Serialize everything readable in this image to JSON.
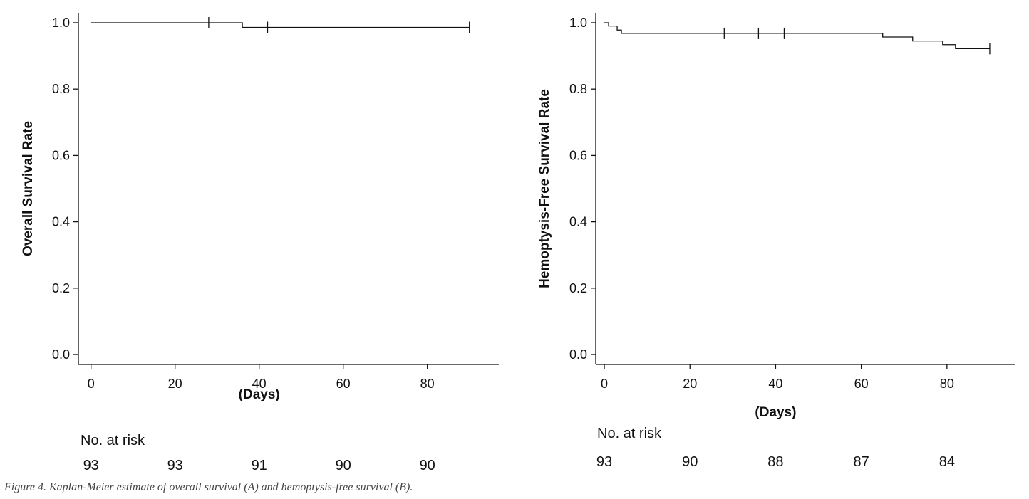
{
  "chart_data": [
    {
      "type": "line",
      "step": true,
      "xlabel": "(Days)",
      "ylabel": "Overall Survival Rate",
      "xlim": [
        -3,
        97
      ],
      "ylim": [
        -0.03,
        1.03
      ],
      "x_ticks": [
        "0",
        "20",
        "40",
        "60",
        "80"
      ],
      "y_ticks": [
        "0.0",
        "0.2",
        "0.4",
        "0.6",
        "0.8",
        "1.0"
      ],
      "series": [
        {
          "x": [
            0,
            36,
            90
          ],
          "y": [
            1.0,
            0.986,
            0.986
          ],
          "censored_x": [
            28,
            42,
            90
          ]
        }
      ],
      "risk_table": {
        "label": "No. at risk",
        "times": [
          0,
          20,
          40,
          60,
          80
        ],
        "counts": [
          "93",
          "93",
          "91",
          "90",
          "90"
        ]
      }
    },
    {
      "type": "line",
      "step": true,
      "xlabel": "(Days)",
      "ylabel": "Hemoptysis-Free Survival Rate",
      "xlim": [
        -2,
        96
      ],
      "ylim": [
        -0.03,
        1.03
      ],
      "x_ticks": [
        "0",
        "20",
        "40",
        "60",
        "80"
      ],
      "y_ticks": [
        "0.0",
        "0.2",
        "0.4",
        "0.6",
        "0.8",
        "1.0"
      ],
      "series": [
        {
          "x": [
            0,
            1,
            3,
            4,
            65,
            72,
            79,
            82,
            90
          ],
          "y": [
            1.0,
            0.99,
            0.978,
            0.968,
            0.957,
            0.945,
            0.934,
            0.922,
            0.922
          ],
          "censored_x": [
            28,
            36,
            42,
            90
          ]
        }
      ],
      "risk_table": {
        "label": "No. at risk",
        "times": [
          0,
          20,
          40,
          60,
          80
        ],
        "counts": [
          "93",
          "90",
          "88",
          "87",
          "84"
        ]
      }
    }
  ],
  "caption": "Figure 4.  Kaplan-Meier estimate of overall survival (A) and hemoptysis-free survival (B)."
}
